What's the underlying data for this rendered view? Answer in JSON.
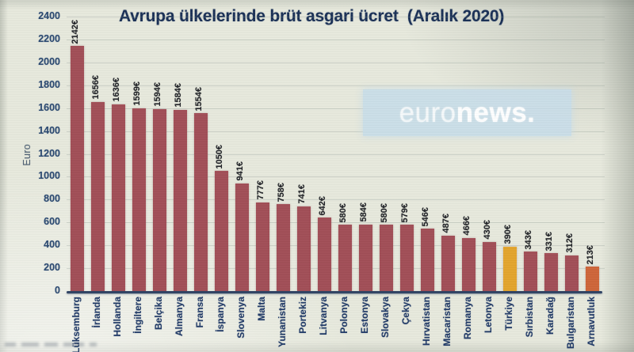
{
  "page": {
    "title": "Avrupa ülkelerinde brüt asgari ücret  (Aralık 2020)"
  },
  "watermark": {
    "prefix": "euro",
    "suffix": "news."
  },
  "chart_data": {
    "type": "bar",
    "title": "Avrupa ülkelerinde brüt asgari ücret (Aralık 2020)",
    "xlabel": "",
    "ylabel": "Euro",
    "ylim": [
      0,
      2400
    ],
    "ytick_step": 200,
    "grid": true,
    "legend": "none",
    "value_suffix": "€",
    "categories": [
      "Lüksemburg",
      "İrlanda",
      "Hollanda",
      "İngiltere",
      "Belçika",
      "Almanya",
      "Fransa",
      "İspanya",
      "Slovenya",
      "Malta",
      "Yunanistan",
      "Portekiz",
      "Litvanya",
      "Polonya",
      "Estonya",
      "Slovakya",
      "Çekya",
      "Hırvatistan",
      "Macaristan",
      "Romanya",
      "Letonya",
      "Türkiye",
      "Sırbistan",
      "Karadağ",
      "Bulgaristan",
      "Arnavutluk"
    ],
    "values": [
      2142,
      1656,
      1636,
      1599,
      1594,
      1584,
      1554,
      1050,
      941,
      777,
      758,
      741,
      642,
      580,
      584,
      580,
      579,
      546,
      487,
      466,
      430,
      390,
      343,
      331,
      312,
      213
    ],
    "bar_color_default": "#A14D56",
    "bar_color_overrides": {
      "21": "#E3A42B",
      "25": "#CE6438"
    },
    "colors": {
      "title_text": "#182E55",
      "tick_text": "#27466F",
      "category_text": "#1D3765",
      "value_text": "#1D1F24",
      "axis_line": "#2D4162",
      "background": "#E7E9DD",
      "watermark_band": "#C7DDE9"
    }
  }
}
